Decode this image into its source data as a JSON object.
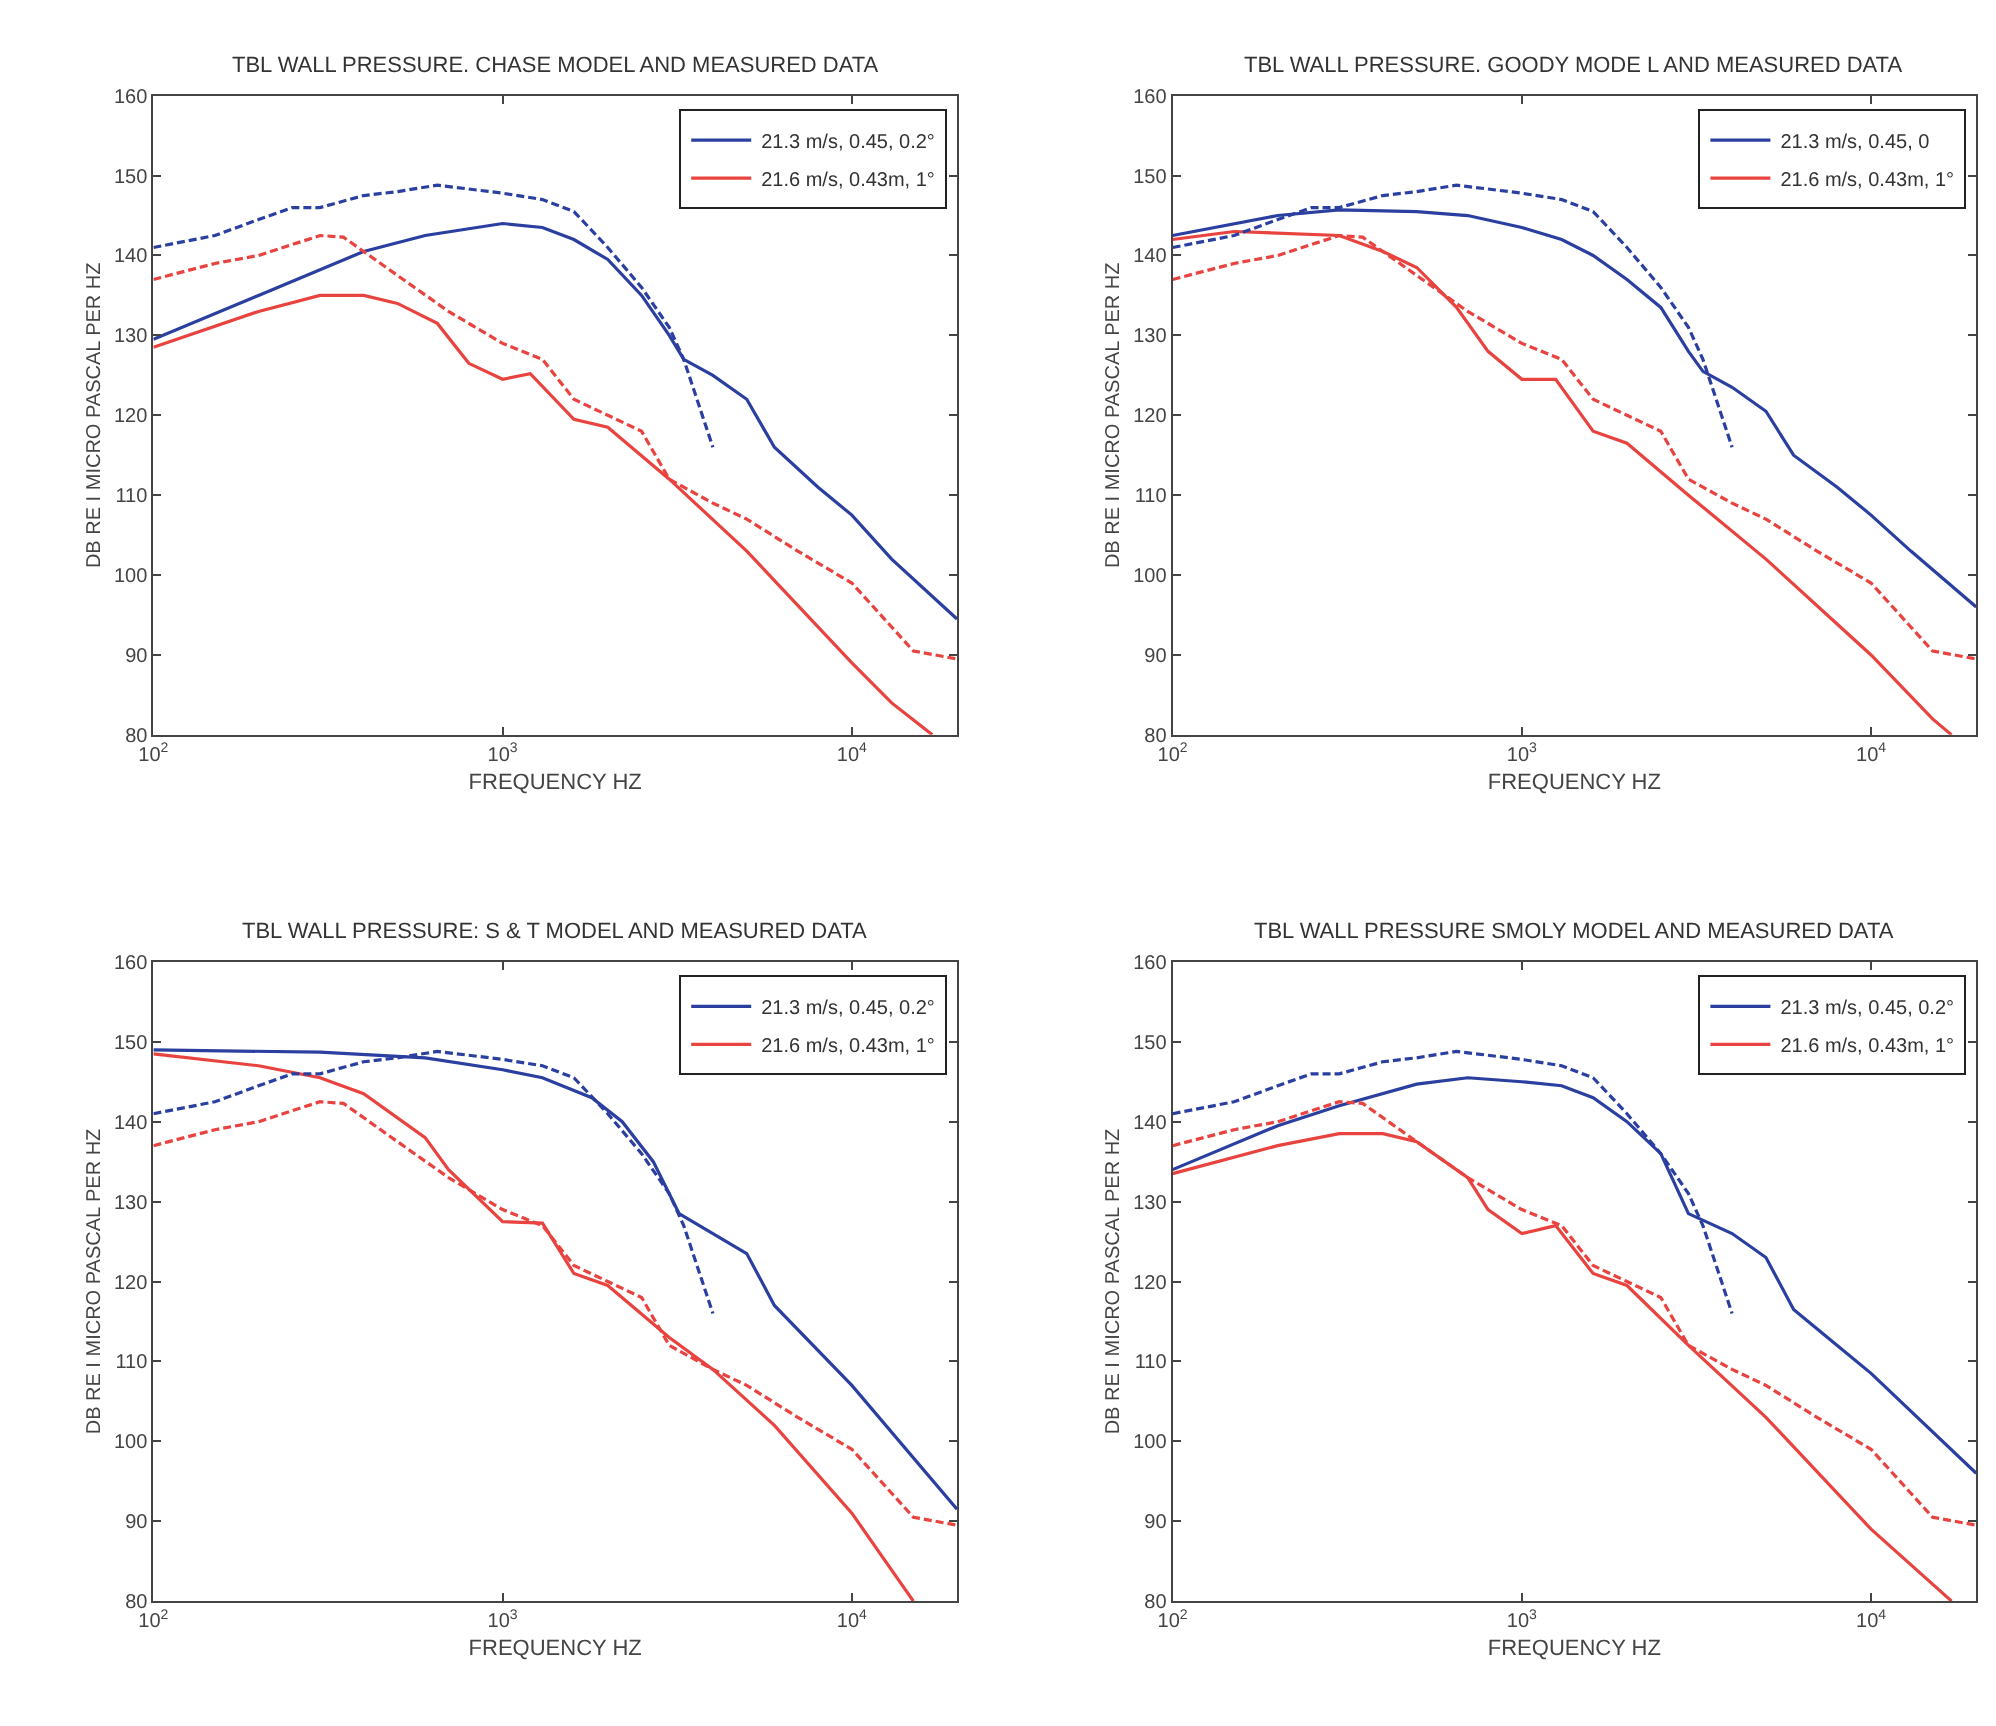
{
  "chart_data": [
    {
      "type": "line",
      "title": "TBL WALL PRESSURE. CHASE MODEL AND MEASURED DATA",
      "xlabel": "FREQUENCY HZ",
      "ylabel": "DB RE I MICRO PASCAL PER HZ",
      "log": "x",
      "grid": false,
      "legend": "top right",
      "xlim": [
        100,
        20000
      ],
      "ylim": [
        80,
        160
      ],
      "xticks": [
        {
          "value": 100,
          "label": "10$^{2}$"
        },
        {
          "value": 1000,
          "label": "10$^{3}$"
        },
        {
          "value": 10000,
          "label": "10$^{4}$"
        }
      ],
      "yticks": [
        80,
        90,
        100,
        110,
        120,
        130,
        140,
        150,
        160
      ],
      "series": [
        {
          "name": "21.3 m/s, 0.45, 0.2°",
          "color": "#2b3fa0",
          "line_style": "solid",
          "x": [
            100,
            200,
            400,
            600,
            1000,
            1300,
            1600,
            2000,
            2500,
            3000,
            3300,
            4000,
            5000,
            6000,
            8000,
            10000,
            13000,
            20000
          ],
          "values": [
            129.5,
            135,
            140.5,
            142.5,
            144,
            143.5,
            142,
            139.5,
            135,
            130,
            127,
            125,
            122,
            116,
            111,
            107.5,
            102,
            94.5
          ]
        },
        {
          "name": "21.6 m/s, 0.43m, 1°",
          "color": "#e8433f",
          "line_style": "solid",
          "x": [
            100,
            200,
            300,
            400,
            500,
            650,
            800,
            1000,
            1200,
            1600,
            2000,
            3000,
            5000,
            10000,
            13000,
            17000
          ],
          "values": [
            128.5,
            133,
            135,
            135,
            134,
            131.5,
            126.5,
            124.5,
            125.2,
            119.5,
            118.5,
            112,
            103,
            89,
            84,
            80
          ]
        },
        {
          "color": "#2b3fa0",
          "line_style": "dashed",
          "x": [
            100,
            150,
            200,
            250,
            300,
            400,
            500,
            650,
            1000,
            1300,
            1600,
            2000,
            2500,
            3000,
            3300,
            4000
          ],
          "values": [
            141,
            142.5,
            144.5,
            146,
            146,
            147.5,
            148,
            148.8,
            147.8,
            147,
            145.5,
            141,
            136,
            131,
            127,
            116
          ]
        },
        {
          "color": "#e8433f",
          "line_style": "dashed",
          "x": [
            100,
            150,
            200,
            300,
            350,
            500,
            700,
            1000,
            1300,
            1600,
            2000,
            2500,
            3000,
            4000,
            5000,
            7000,
            10000,
            13000,
            15000,
            20000
          ],
          "values": [
            137,
            139,
            140,
            142.5,
            142.3,
            137.5,
            133,
            129,
            127,
            122,
            120,
            118,
            112,
            109,
            107,
            103,
            99,
            93.5,
            90.5,
            89.5
          ]
        }
      ]
    },
    {
      "type": "line",
      "title": "TBL WALL PRESSURE. GOODY MODE L AND MEASURED DATA",
      "xlabel": "FREQUENCY HZ",
      "ylabel": "DB RE I MICRO PASCAL PER HZ",
      "log": "x",
      "grid": false,
      "legend": "top right",
      "xlim": [
        100,
        20000
      ],
      "ylim": [
        80,
        160
      ],
      "xticks": [
        {
          "value": 100,
          "label": "10$^{2}$"
        },
        {
          "value": 1000,
          "label": "10$^{3}$"
        },
        {
          "value": 10000,
          "label": "10$^{4}$"
        }
      ],
      "yticks": [
        80,
        90,
        100,
        110,
        120,
        130,
        140,
        150,
        160
      ],
      "series": [
        {
          "name": "21.3 m/s, 0.45, 0",
          "color": "#2b3fa0",
          "line_style": "solid",
          "x": [
            100,
            200,
            300,
            500,
            700,
            1000,
            1300,
            1600,
            2000,
            2500,
            3000,
            3300,
            4000,
            5000,
            6000,
            8000,
            10000,
            13000,
            20000
          ],
          "values": [
            142.5,
            145,
            145.7,
            145.5,
            145,
            143.5,
            142,
            140,
            137,
            133.5,
            128,
            125.5,
            123.5,
            120.5,
            115,
            111,
            107.5,
            103,
            96
          ]
        },
        {
          "name": "21.6 m/s, 0.43m, 1°",
          "color": "#e8433f",
          "line_style": "solid",
          "x": [
            100,
            150,
            300,
            400,
            500,
            650,
            800,
            1000,
            1250,
            1600,
            2000,
            3000,
            5000,
            10000,
            15000,
            17000
          ],
          "values": [
            142,
            143,
            142.5,
            140.5,
            138.5,
            133.5,
            128,
            124.5,
            124.5,
            118,
            116.5,
            110,
            102,
            90,
            82,
            80
          ]
        },
        {
          "color": "#2b3fa0",
          "line_style": "dashed",
          "x": [
            100,
            150,
            200,
            250,
            300,
            400,
            500,
            650,
            1000,
            1300,
            1600,
            2000,
            2500,
            3000,
            3300,
            4000
          ],
          "values": [
            141,
            142.5,
            144.5,
            146,
            146,
            147.5,
            148,
            148.8,
            147.8,
            147,
            145.5,
            141,
            136,
            131,
            127,
            116
          ]
        },
        {
          "color": "#e8433f",
          "line_style": "dashed",
          "x": [
            100,
            150,
            200,
            300,
            350,
            500,
            700,
            1000,
            1300,
            1600,
            2000,
            2500,
            3000,
            4000,
            5000,
            7000,
            10000,
            13000,
            15000,
            20000
          ],
          "values": [
            137,
            139,
            140,
            142.5,
            142.3,
            137.5,
            133,
            129,
            127,
            122,
            120,
            118,
            112,
            109,
            107,
            103,
            99,
            93.5,
            90.5,
            89.5
          ]
        }
      ]
    },
    {
      "type": "line",
      "title": "TBL WALL PRESSURE: S & T MODEL AND MEASURED DATA",
      "xlabel": "FREQUENCY HZ",
      "ylabel": "DB RE I MICRO PASCAL PER HZ",
      "log": "x",
      "grid": false,
      "legend": "top right",
      "xlim": [
        100,
        20000
      ],
      "ylim": [
        80,
        160
      ],
      "xticks": [
        {
          "value": 100,
          "label": "10$^{2}$"
        },
        {
          "value": 1000,
          "label": "10$^{3}$"
        },
        {
          "value": 10000,
          "label": "10$^{4}$"
        }
      ],
      "yticks": [
        80,
        90,
        100,
        110,
        120,
        130,
        140,
        150,
        160
      ],
      "series": [
        {
          "name": "21.3 m/s, 0.45, 0.2°",
          "color": "#2b3fa0",
          "line_style": "solid",
          "x": [
            100,
            300,
            600,
            1000,
            1300,
            1800,
            2200,
            2700,
            3200,
            4000,
            5000,
            6000,
            10000,
            20000
          ],
          "values": [
            149,
            148.7,
            148,
            146.5,
            145.5,
            143,
            140,
            135,
            128.5,
            126,
            123.5,
            117,
            107,
            91.5
          ]
        },
        {
          "name": "21.6 m/s, 0.43m, 1°",
          "color": "#e8433f",
          "line_style": "solid",
          "x": [
            100,
            200,
            300,
            400,
            600,
            700,
            1000,
            1300,
            1600,
            2000,
            3000,
            4000,
            6000,
            10000,
            15000
          ],
          "values": [
            148.5,
            147,
            145.5,
            143.5,
            138,
            134,
            127.5,
            127.3,
            121,
            119.5,
            113,
            109,
            102,
            91,
            80
          ]
        },
        {
          "color": "#2b3fa0",
          "line_style": "dashed",
          "x": [
            100,
            150,
            200,
            250,
            300,
            400,
            500,
            650,
            1000,
            1300,
            1600,
            2000,
            2500,
            3000,
            3300,
            4000
          ],
          "values": [
            141,
            142.5,
            144.5,
            146,
            146,
            147.5,
            148,
            148.8,
            147.8,
            147,
            145.5,
            141,
            136,
            131,
            127,
            116
          ]
        },
        {
          "color": "#e8433f",
          "line_style": "dashed",
          "x": [
            100,
            150,
            200,
            300,
            350,
            500,
            700,
            1000,
            1300,
            1600,
            2000,
            2500,
            3000,
            4000,
            5000,
            7000,
            10000,
            13000,
            15000,
            20000
          ],
          "values": [
            137,
            139,
            140,
            142.5,
            142.3,
            137.5,
            133,
            129,
            127,
            122,
            120,
            118,
            112,
            109,
            107,
            103,
            99,
            93.5,
            90.5,
            89.5
          ]
        }
      ]
    },
    {
      "type": "line",
      "title": "TBL WALL PRESSURE SMOLY MODEL AND MEASURED DATA",
      "xlabel": "FREQUENCY HZ",
      "ylabel": "DB RE I MICRO PASCAL PER HZ",
      "log": "x",
      "grid": false,
      "legend": "top right",
      "xlim": [
        100,
        20000
      ],
      "ylim": [
        80,
        160
      ],
      "xticks": [
        {
          "value": 100,
          "label": "10$^{2}$"
        },
        {
          "value": 1000,
          "label": "10$^{3}$"
        },
        {
          "value": 10000,
          "label": "10$^{4}$"
        }
      ],
      "yticks": [
        80,
        90,
        100,
        110,
        120,
        130,
        140,
        150,
        160
      ],
      "series": [
        {
          "name": "21.3 m/s, 0.45, 0.2°",
          "color": "#2b3fa0",
          "line_style": "solid",
          "x": [
            100,
            200,
            300,
            500,
            700,
            1000,
            1300,
            1600,
            2000,
            2500,
            3000,
            4000,
            5000,
            6000,
            8000,
            10000,
            20000
          ],
          "values": [
            134,
            139.5,
            142,
            144.7,
            145.5,
            145,
            144.5,
            143,
            140,
            136,
            128.5,
            126,
            123,
            116.5,
            112,
            108.5,
            96
          ]
        },
        {
          "name": "21.6 m/s, 0.43m, 1°",
          "color": "#e8433f",
          "line_style": "solid",
          "x": [
            100,
            200,
            300,
            400,
            500,
            700,
            800,
            1000,
            1250,
            1600,
            2000,
            3000,
            5000,
            10000,
            17000
          ],
          "values": [
            133.5,
            137,
            138.5,
            138.5,
            137.5,
            133,
            129,
            126,
            127,
            121,
            119.5,
            112,
            103,
            89,
            80
          ]
        },
        {
          "color": "#2b3fa0",
          "line_style": "dashed",
          "x": [
            100,
            150,
            200,
            250,
            300,
            400,
            500,
            650,
            1000,
            1300,
            1600,
            2000,
            2500,
            3000,
            3300,
            4000
          ],
          "values": [
            141,
            142.5,
            144.5,
            146,
            146,
            147.5,
            148,
            148.8,
            147.8,
            147,
            145.5,
            141,
            136,
            131,
            127,
            116
          ]
        },
        {
          "color": "#e8433f",
          "line_style": "dashed",
          "x": [
            100,
            150,
            200,
            300,
            350,
            500,
            700,
            1000,
            1300,
            1600,
            2000,
            2500,
            3000,
            4000,
            5000,
            7000,
            10000,
            13000,
            15000,
            20000
          ],
          "values": [
            137,
            139,
            140,
            142.5,
            142.3,
            137.5,
            133,
            129,
            127,
            122,
            120,
            118,
            112,
            109,
            107,
            103,
            99,
            93.5,
            90.5,
            89.5
          ]
        }
      ]
    }
  ]
}
